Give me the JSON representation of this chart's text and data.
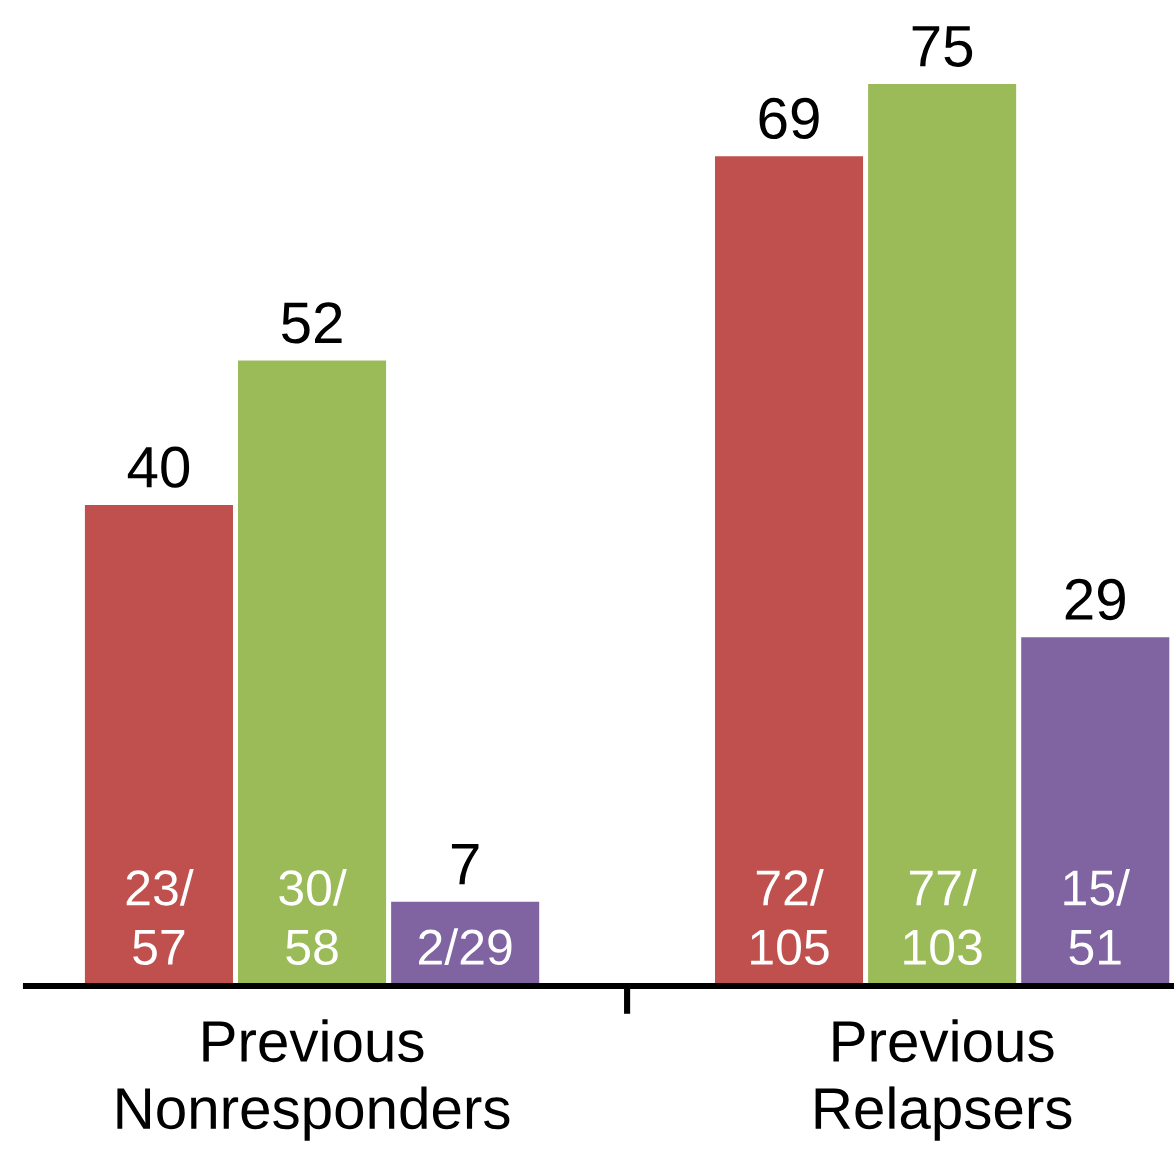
{
  "chart_data": {
    "type": "bar",
    "categories": [
      "Previous\nNonresponders",
      "Previous\nRelapsers"
    ],
    "series": [
      {
        "color": "#c0504d",
        "values": [
          40,
          69
        ]
      },
      {
        "color": "#9bbb59",
        "values": [
          52,
          75
        ]
      },
      {
        "color": "#8064a2",
        "values": [
          7,
          29
        ]
      }
    ],
    "data_labels": true,
    "tick_labels": "x",
    "annotations": [
      "23/\n57",
      "30/\n58",
      "2/29",
      "72/\n105",
      "77/\n103",
      "15/\n51"
    ]
  }
}
